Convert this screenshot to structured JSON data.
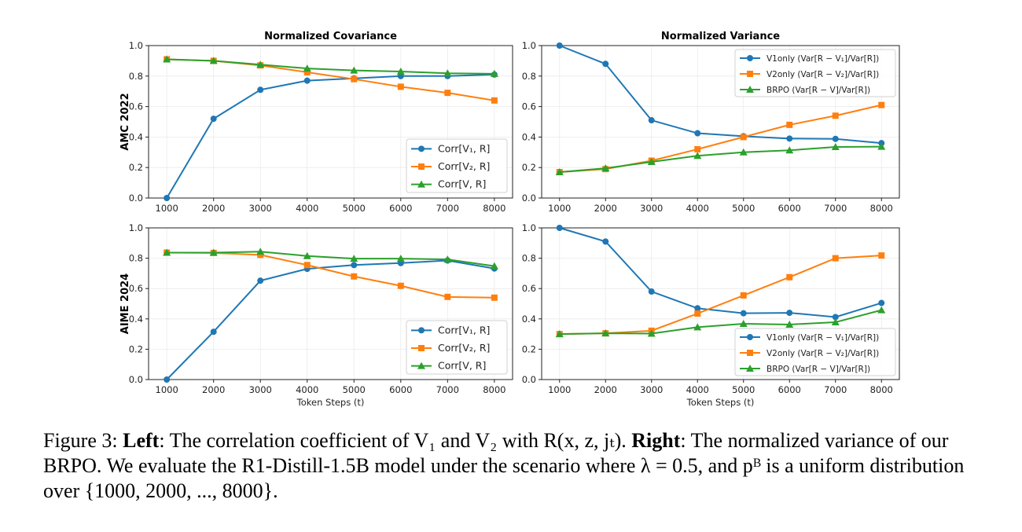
{
  "figure": {
    "caption": {
      "label": "Figure 3:",
      "left_bold": "Left",
      "left_text": ": The correlation coefficient of V₁ and V₂ with R(x, z, jₜ). ",
      "right_bold": "Right",
      "right_text": ": The normalized variance of our BRPO. We evaluate the R1-Distill-1.5B model under the scenario where λ = 0.5, and pᴮ is a uniform distribution over {1000, 2000, ..., 8000}."
    },
    "colors": {
      "blue": "#1f77b4",
      "orange": "#ff7f0e",
      "green": "#2ca02c"
    }
  },
  "chart_data": [
    {
      "type": "line",
      "id": "amc-cov",
      "title": "Normalized Covariance",
      "ylabel": "AMC 2022",
      "xlabel": "",
      "x": [
        1000,
        2000,
        3000,
        4000,
        5000,
        6000,
        7000,
        8000
      ],
      "xticks": [
        "1000",
        "2000",
        "3000",
        "4000",
        "5000",
        "6000",
        "7000",
        "8000"
      ],
      "yticks": [
        "0.0",
        "0.2",
        "0.4",
        "0.6",
        "0.8",
        "1.0"
      ],
      "ylim": [
        0,
        1
      ],
      "grid": true,
      "legend": "lower-right",
      "series": [
        {
          "name": "Corr[V₁, R]",
          "color": "blue",
          "marker": "circle",
          "values": [
            0.0,
            0.52,
            0.71,
            0.77,
            0.785,
            0.8,
            0.8,
            0.81
          ]
        },
        {
          "name": "Corr[V₂, R]",
          "color": "orange",
          "marker": "square",
          "values": [
            0.91,
            0.9,
            0.87,
            0.825,
            0.78,
            0.73,
            0.69,
            0.64
          ]
        },
        {
          "name": "Corr[V, R]",
          "color": "green",
          "marker": "triangle",
          "values": [
            0.91,
            0.9,
            0.875,
            0.85,
            0.837,
            0.83,
            0.818,
            0.815
          ]
        }
      ]
    },
    {
      "type": "line",
      "id": "amc-var",
      "title": "Normalized Variance",
      "ylabel": "",
      "xlabel": "",
      "x": [
        1000,
        2000,
        3000,
        4000,
        5000,
        6000,
        7000,
        8000
      ],
      "xticks": [
        "1000",
        "2000",
        "3000",
        "4000",
        "5000",
        "6000",
        "7000",
        "8000"
      ],
      "yticks": [
        "0.0",
        "0.2",
        "0.4",
        "0.6",
        "0.8",
        "1.0"
      ],
      "ylim": [
        0,
        1
      ],
      "grid": true,
      "legend": "upper-right",
      "series": [
        {
          "name": "V1only (Var[R − V₁]/Var[R])",
          "color": "blue",
          "marker": "circle",
          "values": [
            1.0,
            0.88,
            0.51,
            0.425,
            0.405,
            0.39,
            0.388,
            0.36
          ]
        },
        {
          "name": "V2only (Var[R − V₂]/Var[R])",
          "color": "orange",
          "marker": "square",
          "values": [
            0.17,
            0.19,
            0.245,
            0.32,
            0.4,
            0.48,
            0.54,
            0.61
          ]
        },
        {
          "name": "BRPO (Var[R − V]/Var[R])",
          "color": "green",
          "marker": "triangle",
          "values": [
            0.17,
            0.195,
            0.237,
            0.277,
            0.3,
            0.313,
            0.335,
            0.337
          ]
        }
      ]
    },
    {
      "type": "line",
      "id": "aime-cov",
      "title": "",
      "ylabel": "AIME 2024",
      "xlabel": "Token Steps (t)",
      "x": [
        1000,
        2000,
        3000,
        4000,
        5000,
        6000,
        7000,
        8000
      ],
      "xticks": [
        "1000",
        "2000",
        "3000",
        "4000",
        "5000",
        "6000",
        "7000",
        "8000"
      ],
      "yticks": [
        "0.0",
        "0.2",
        "0.4",
        "0.6",
        "0.8",
        "1.0"
      ],
      "ylim": [
        0,
        1
      ],
      "grid": true,
      "legend": "lower-right",
      "series": [
        {
          "name": "Corr[V₁, R]",
          "color": "blue",
          "marker": "circle",
          "values": [
            0.0,
            0.315,
            0.652,
            0.73,
            0.755,
            0.768,
            0.785,
            0.732
          ]
        },
        {
          "name": "Corr[V₂, R]",
          "color": "orange",
          "marker": "square",
          "values": [
            0.837,
            0.835,
            0.822,
            0.755,
            0.68,
            0.618,
            0.545,
            0.54
          ]
        },
        {
          "name": "Corr[V, R]",
          "color": "green",
          "marker": "triangle",
          "values": [
            0.837,
            0.837,
            0.843,
            0.815,
            0.797,
            0.797,
            0.792,
            0.748
          ]
        }
      ]
    },
    {
      "type": "line",
      "id": "aime-var",
      "title": "",
      "ylabel": "",
      "xlabel": "Token Steps (t)",
      "x": [
        1000,
        2000,
        3000,
        4000,
        5000,
        6000,
        7000,
        8000
      ],
      "xticks": [
        "1000",
        "2000",
        "3000",
        "4000",
        "5000",
        "6000",
        "7000",
        "8000"
      ],
      "yticks": [
        "0.0",
        "0.2",
        "0.4",
        "0.6",
        "0.8",
        "1.0"
      ],
      "ylim": [
        0,
        1
      ],
      "grid": true,
      "legend": "lower-right",
      "series": [
        {
          "name": "V1only (Var[R − V₁]/Var[R])",
          "color": "blue",
          "marker": "circle",
          "values": [
            1.0,
            0.91,
            0.58,
            0.47,
            0.437,
            0.44,
            0.412,
            0.505
          ]
        },
        {
          "name": "V2only (Var[R − V₂]/Var[R])",
          "color": "orange",
          "marker": "square",
          "values": [
            0.3,
            0.305,
            0.322,
            0.435,
            0.555,
            0.675,
            0.8,
            0.818
          ]
        },
        {
          "name": "BRPO (Var[R − V]/Var[R])",
          "color": "green",
          "marker": "triangle",
          "values": [
            0.3,
            0.305,
            0.303,
            0.345,
            0.368,
            0.363,
            0.378,
            0.458
          ]
        }
      ]
    }
  ]
}
